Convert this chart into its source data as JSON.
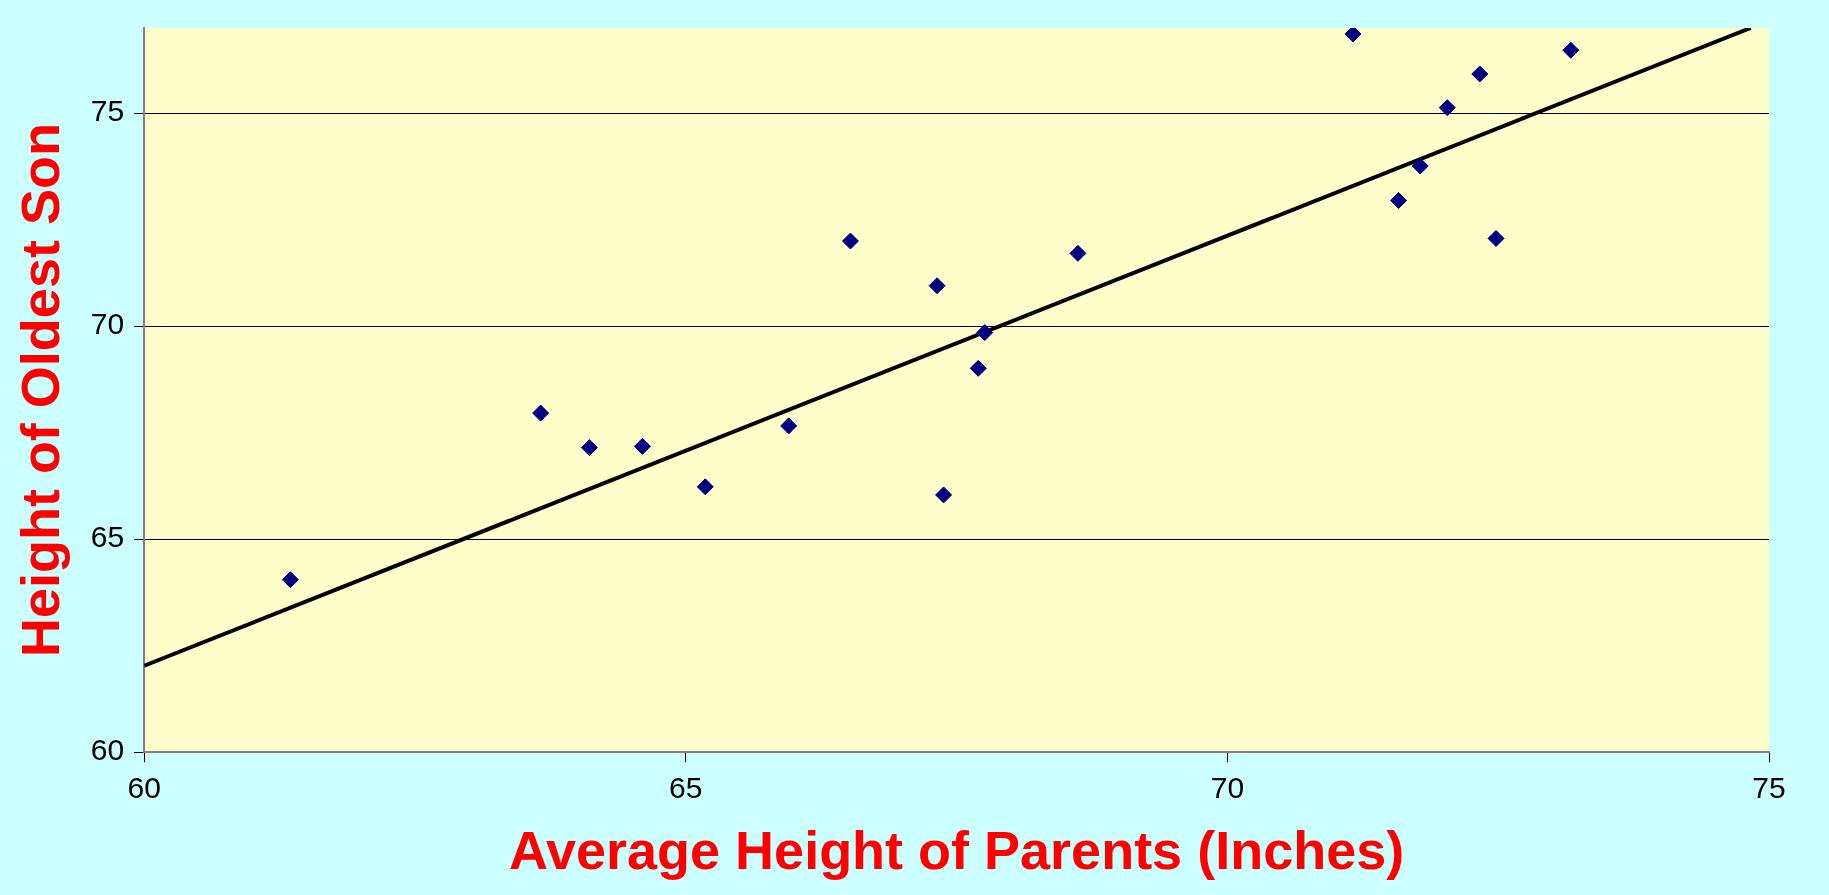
{
  "chart_data": {
    "type": "scatter",
    "xlabel": "Average Height of Parents (Inches)",
    "ylabel": "Height of Oldest Son",
    "xlim": [
      60,
      75
    ],
    "xticks": [
      60,
      65,
      70,
      75
    ],
    "ylim": [
      60,
      77
    ],
    "yticks": [
      60,
      65,
      70,
      75
    ],
    "grid": "y",
    "legend": false,
    "series": [
      {
        "marker": "diamond",
        "color": "#000080",
        "x": [
          61.35,
          63.66,
          64.11,
          64.6,
          65.18,
          65.95,
          66.52,
          67.32,
          67.38,
          67.7,
          67.76,
          68.62,
          71.16,
          71.58,
          71.78,
          72.03,
          72.33,
          72.48,
          73.17
        ],
        "values": [
          64.05,
          67.96,
          67.15,
          67.18,
          66.23,
          67.66,
          72.0,
          70.95,
          66.04,
          69.01,
          69.85,
          71.71,
          76.86,
          72.95,
          73.76,
          75.13,
          75.92,
          72.06,
          76.48
        ]
      },
      {
        "type": "line",
        "marker": "none",
        "color": "#000000",
        "x": [
          60,
          74.83
        ],
        "values": [
          62.03,
          77.0
        ]
      }
    ]
  }
}
